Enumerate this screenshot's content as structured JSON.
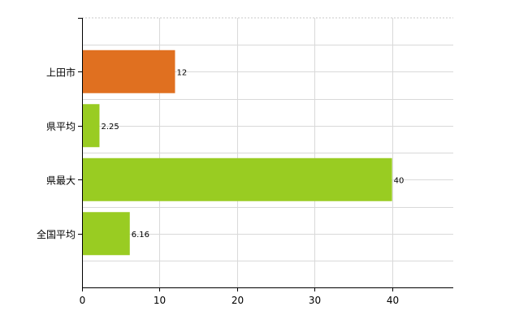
{
  "chart_data": {
    "type": "bar",
    "orientation": "horizontal",
    "categories": [
      "上田市",
      "県平均",
      "県最大",
      "全国平均"
    ],
    "values": [
      12,
      2.25,
      40,
      6.16
    ],
    "data_labels": [
      "12",
      "2.25",
      "40",
      "6.16"
    ],
    "x_ticks": [
      "0",
      "10",
      "20",
      "30",
      "40"
    ],
    "xlim": [
      0,
      47.9
    ],
    "grid": true,
    "legend": "none",
    "colors": {
      "highlight": "#e07020",
      "default": "#99cc22",
      "grid": "#d9d9d9",
      "axis": "#000000"
    },
    "highlight_index": 0
  }
}
